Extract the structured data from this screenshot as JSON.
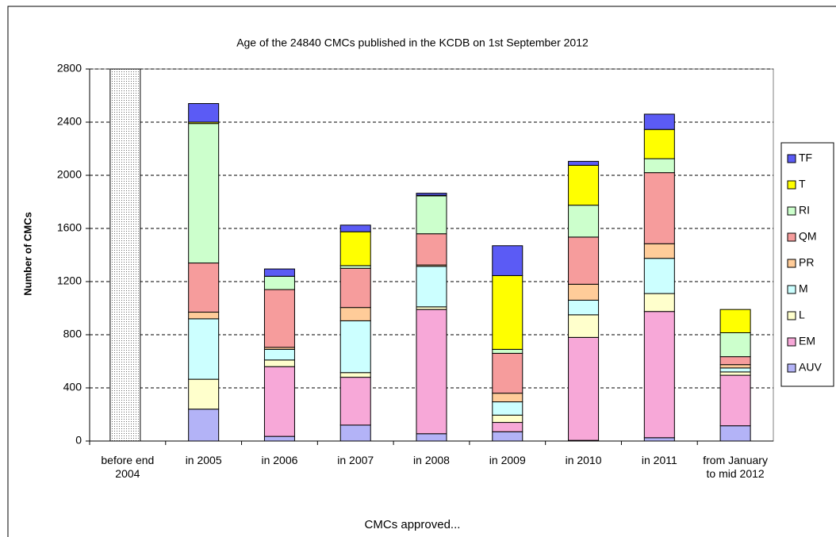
{
  "chart_data": {
    "type": "stacked_bar",
    "title": "Age of the 24840 CMCs published in the KCDB on 1st September 2012",
    "xlabel": "CMCs approved...",
    "ylabel": "Number of CMCs",
    "categories": [
      "before end 2004",
      "in 2005",
      "in 2006",
      "in 2007",
      "in 2008",
      "in 2009",
      "in 2010",
      "in 2011",
      "from January to mid 2012"
    ],
    "ylim": [
      0,
      2800
    ],
    "yticks": [
      0,
      400,
      800,
      1200,
      1600,
      2000,
      2400,
      2800
    ],
    "grid": true,
    "legend": "right",
    "series": [
      {
        "name": "AUV",
        "color": "#b3b3f7",
        "values": [
          null,
          240,
          35,
          120,
          55,
          70,
          5,
          25,
          115
        ]
      },
      {
        "name": "EM",
        "color": "#f7a8d8",
        "values": [
          null,
          0,
          525,
          360,
          935,
          70,
          775,
          950,
          380
        ]
      },
      {
        "name": "L",
        "color": "#ffffcc",
        "values": [
          null,
          225,
          50,
          35,
          20,
          55,
          170,
          135,
          25
        ]
      },
      {
        "name": "M",
        "color": "#ccffff",
        "values": [
          null,
          455,
          80,
          390,
          305,
          100,
          110,
          265,
          30
        ]
      },
      {
        "name": "PR",
        "color": "#ffcc99",
        "values": [
          null,
          50,
          15,
          100,
          10,
          65,
          120,
          110,
          25
        ]
      },
      {
        "name": "QM",
        "color": "#f69c9c",
        "values": [
          null,
          370,
          435,
          295,
          235,
          300,
          355,
          535,
          60
        ]
      },
      {
        "name": "RI",
        "color": "#ccffcc",
        "values": [
          null,
          1050,
          100,
          20,
          285,
          30,
          240,
          105,
          180
        ]
      },
      {
        "name": "T",
        "color": "#ffff00",
        "values": [
          null,
          10,
          0,
          255,
          5,
          555,
          300,
          220,
          175
        ]
      },
      {
        "name": "TF",
        "color": "#5b5bf5",
        "values": [
          null,
          140,
          55,
          50,
          15,
          225,
          30,
          115,
          0
        ]
      }
    ]
  }
}
